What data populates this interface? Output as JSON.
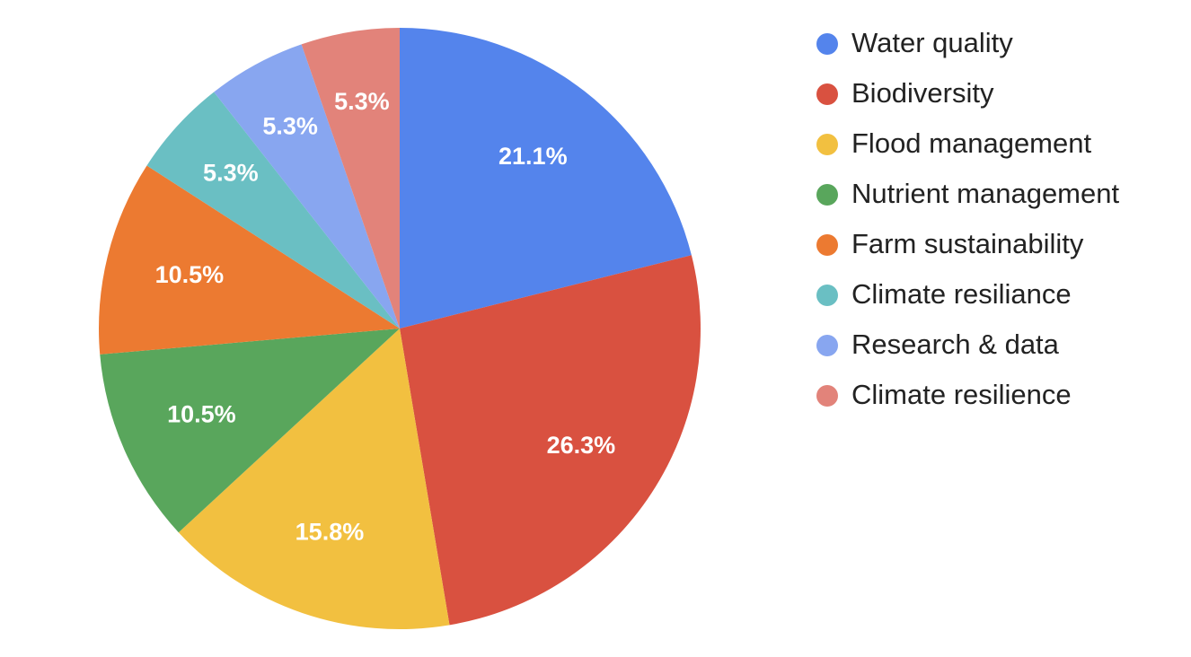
{
  "chart_data": {
    "type": "pie",
    "categories": [
      "Water quality",
      "Biodiversity",
      "Flood management",
      "Nutrient management",
      "Farm sustainability",
      "Climate resiliance",
      "Research & data",
      "Climate resilience"
    ],
    "values": [
      21.1,
      26.3,
      15.8,
      10.5,
      10.5,
      5.3,
      5.3,
      5.3
    ],
    "value_labels": [
      "21.1%",
      "26.3%",
      "15.8%",
      "10.5%",
      "10.5%",
      "5.3%",
      "5.3%",
      "5.3%"
    ],
    "colors": [
      "#5484ec",
      "#d95140",
      "#f2c040",
      "#59a65c",
      "#ec7a31",
      "#6abfc3",
      "#88a6f0",
      "#e2837a"
    ],
    "legend": "right"
  }
}
